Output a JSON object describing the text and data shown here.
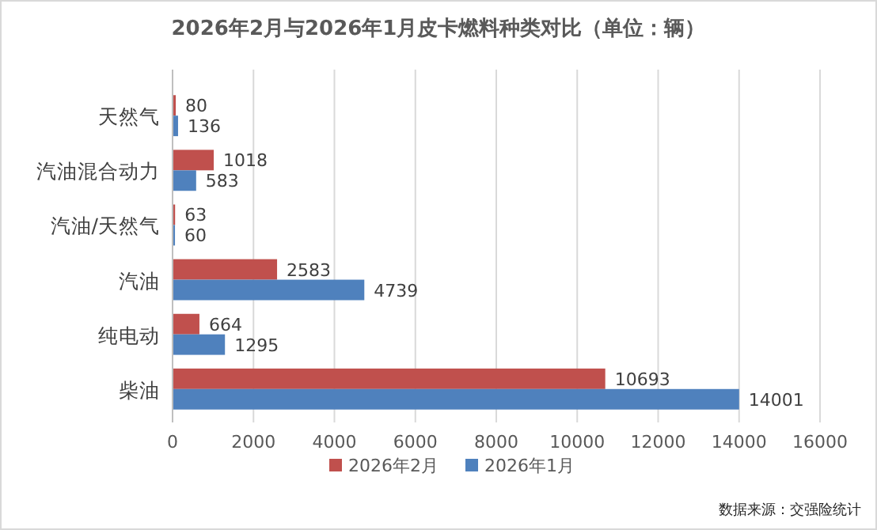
{
  "chart_data": {
    "type": "bar",
    "orientation": "horizontal",
    "title": "2026年2月与2026年1月皮卡燃料种类对比（单位：辆）",
    "categories": [
      "天然气",
      "汽油混合动力",
      "汽油/天然气",
      "汽油",
      "纯电动",
      "柴油"
    ],
    "series": [
      {
        "name": "2026年2月",
        "color": "#c0504d",
        "values": [
          80,
          1018,
          63,
          2583,
          664,
          10693
        ]
      },
      {
        "name": "2026年1月",
        "color": "#4f81bd",
        "values": [
          136,
          583,
          60,
          4739,
          1295,
          14001
        ]
      }
    ],
    "xlim": [
      0,
      16000
    ],
    "xticks": [
      0,
      2000,
      4000,
      6000,
      8000,
      10000,
      12000,
      14000,
      16000
    ],
    "grid": "x",
    "data_labels": true,
    "legend": "bottom",
    "annotations": [
      "数据来源：交强险统计"
    ]
  }
}
